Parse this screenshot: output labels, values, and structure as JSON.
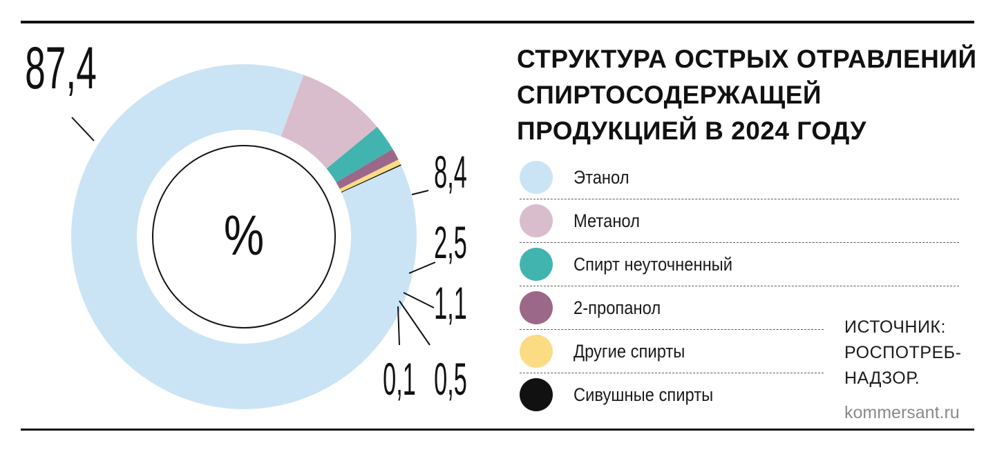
{
  "chart_data": {
    "type": "pie",
    "title": "СТРУКТУРА ОСТРЫХ ОТРАВЛЕНИЙ\nСПИРТОСОДЕРЖАЩЕЙ\nПРОДУКЦИЕЙ В 2024 ГОДУ",
    "center_label": "%",
    "slices": [
      {
        "label": "Этанол",
        "value": 87.4,
        "value_text": "87,4",
        "color": "#cbe4f5"
      },
      {
        "label": "Метанол",
        "value": 8.4,
        "value_text": "8,4",
        "color": "#d9bdcd"
      },
      {
        "label": "Спирт неуточненный",
        "value": 2.5,
        "value_text": "2,5",
        "color": "#42b4af"
      },
      {
        "label": "2-пропанол",
        "value": 1.1,
        "value_text": "1,1",
        "color": "#9b6889"
      },
      {
        "label": "Другие спирты",
        "value": 0.5,
        "value_text": "0,5",
        "color": "#fbdc84"
      },
      {
        "label": "Сивушные спирты",
        "value": 0.1,
        "value_text": "0,1",
        "color": "#111111"
      }
    ]
  },
  "source": "ИСТОЧНИК:\nРОСПОТРЕБ-\nНАДЗОР.",
  "site": "kommersant.ru"
}
